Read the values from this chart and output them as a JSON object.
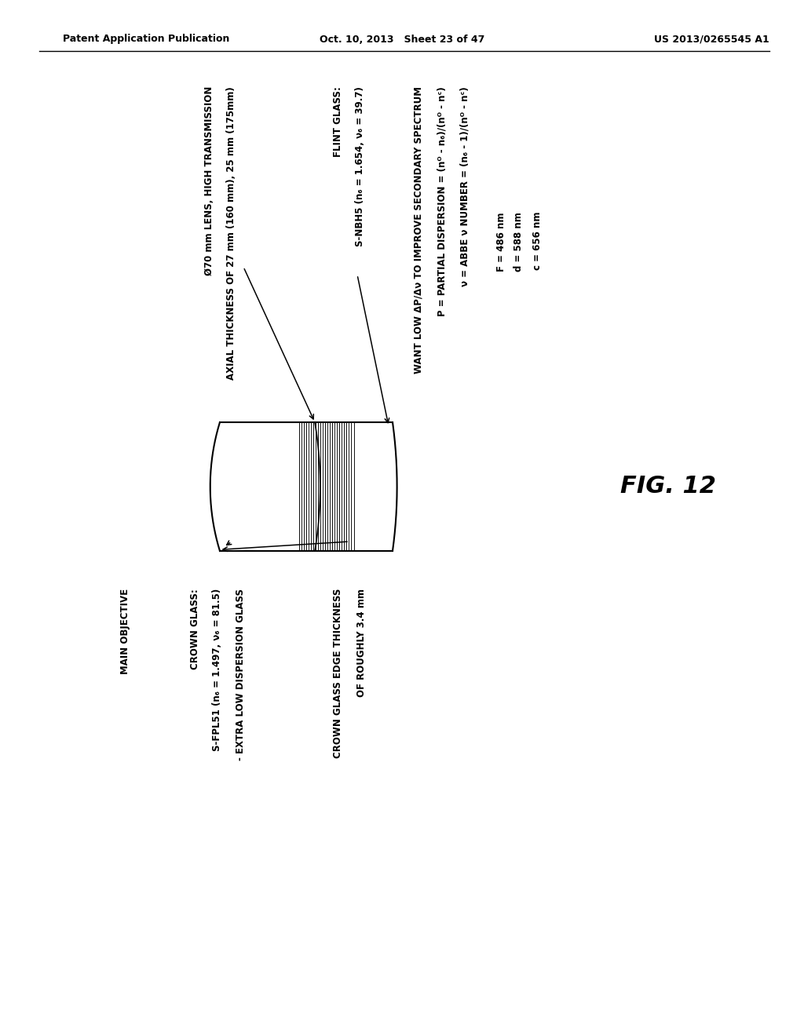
{
  "bg_color": "#ffffff",
  "header_left": "Patent Application Publication",
  "header_center": "Oct. 10, 2013   Sheet 23 of 47",
  "header_right": "US 2013/0265545 A1",
  "fig_label": "FIG. 12",
  "label_diameter": "Ø70 mm LENS, HIGH TRANSMISSION",
  "label_axial": "AXIAL THICKNESS OF 27 mm (160 mm), 25 mm (175mm)",
  "label_flint_header": "FLINT GLASS:",
  "label_flint_glass": "S-NBH5 (n₆ = 1.654, ν₆ = 39.7)",
  "label_want_low": "WANT LOW ΔP/Δν TO IMPROVE SECONDARY SPECTRUM",
  "label_partial": "P = PARTIAL DISPERSION = (nᴼ - n₆)/(nᴼ - nᶜ)",
  "label_abbe": "ν = ABBE ν NUMBER = (n₆ - 1)/(nᴼ - nᶜ)",
  "label_F": "F = 486 nm",
  "label_d": "d = 588 nm",
  "label_c": "c = 656 nm",
  "label_main_objective": "MAIN OBJECTIVE",
  "label_crown_header": "CROWN GLASS:",
  "label_crown_glass": "S-FPL51 (n₆ = 1.497, ν₆ = 81.5)",
  "label_crown_sub": "- EXTRA LOW DISPERSION GLASS",
  "label_crown_edge": "CROWN GLASS EDGE THICKNESS",
  "label_crown_edge2": "OF ROUGHLY 3.4 mm"
}
